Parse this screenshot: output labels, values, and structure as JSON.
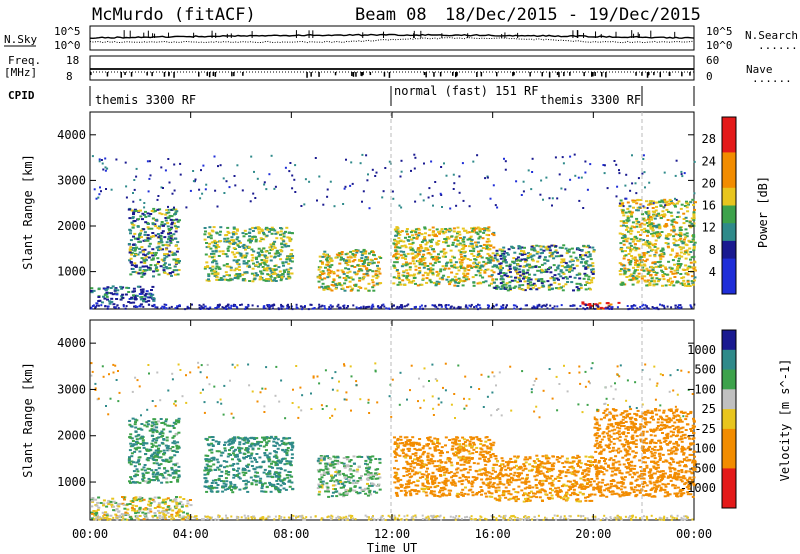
{
  "header": {
    "radar": "McMurdo (fitACF)",
    "beam": "Beam 08",
    "date_range": "18/Dec/2015 - 19/Dec/2015"
  },
  "panels": {
    "left_labels": {
      "nsky": "N.Sky",
      "nsky_ticks": [
        "10^5",
        "10^0"
      ],
      "freq": "Freq.",
      "freq_unit": "[MHz]",
      "freq_ticks": [
        "18",
        "8"
      ],
      "cpid": "CPID"
    },
    "right_labels": {
      "nsearch": "N.Search",
      "nsearch_ticks": [
        "10^5",
        "10^0"
      ],
      "nave": "Nave",
      "nave_ticks": [
        "60",
        "0"
      ],
      "dotted": "......"
    },
    "cpid_segments": [
      "themis 3300 RF",
      "normal (fast) 151 RF",
      "themis 3300 RF"
    ]
  },
  "colors": {
    "blue": "#1f2ed8",
    "teal": "#2f8a8a",
    "green": "#3da24b",
    "yellow": "#e8c51e",
    "orange": "#f28c00",
    "red": "#e41a1a",
    "gray": "#c0c0c0",
    "darkblue": "#1a1a90"
  },
  "chart_data": [
    {
      "type": "heatmap",
      "title": "Power [dB]",
      "xlabel": "",
      "ylabel": "Slant Range [km]",
      "xlim": [
        "00:00",
        "00:00"
      ],
      "ylim": [
        180,
        4500
      ],
      "y_ticks": [
        "4000",
        "3000",
        "2000",
        "1000"
      ],
      "colorbar": {
        "label": "Power [dB]",
        "ticks": [
          "28",
          "24",
          "20",
          "16",
          "12",
          "8",
          "4"
        ],
        "range": [
          0,
          30
        ]
      },
      "regions": [
        {
          "t_start": 0.0,
          "t_end": 2.5,
          "range_km": [
            300,
            700
          ],
          "value": 10
        },
        {
          "t_start": 1.5,
          "t_end": 3.5,
          "range_km": [
            900,
            2400
          ],
          "value": 14
        },
        {
          "t_start": 4.5,
          "t_end": 8.0,
          "range_km": [
            800,
            2000
          ],
          "value": 16
        },
        {
          "t_start": 9.0,
          "t_end": 11.5,
          "range_km": [
            600,
            1500
          ],
          "value": 18
        },
        {
          "t_start": 12.0,
          "t_end": 16.0,
          "range_km": [
            700,
            2000
          ],
          "value": 18
        },
        {
          "t_start": 16.0,
          "t_end": 20.0,
          "range_km": [
            600,
            1600
          ],
          "value": 14
        },
        {
          "t_start": 19.5,
          "t_end": 21.0,
          "range_km": [
            200,
            350
          ],
          "value": 28
        },
        {
          "t_start": 21.0,
          "t_end": 24.0,
          "range_km": [
            700,
            2600
          ],
          "value": 18
        }
      ]
    },
    {
      "type": "heatmap",
      "title": "Velocity [m s^-1]",
      "xlabel": "Time UT",
      "ylabel": "Slant Range [km]",
      "x_ticks": [
        "00:00",
        "04:00",
        "08:00",
        "12:00",
        "16:00",
        "20:00",
        "00:00"
      ],
      "ylim": [
        180,
        4500
      ],
      "y_ticks": [
        "4000",
        "3000",
        "2000",
        "1000"
      ],
      "colorbar": {
        "label": "Velocity [m s^-1]",
        "ticks": [
          "1000",
          "500",
          "100",
          "25",
          "-25",
          "-100",
          "-500",
          "-1000"
        ],
        "range": [
          -1000,
          1000
        ]
      },
      "regions": [
        {
          "t_start": 0.0,
          "t_end": 4.0,
          "range_km": [
            200,
            700
          ],
          "value": 0
        },
        {
          "t_start": 1.5,
          "t_end": 3.5,
          "range_km": [
            1000,
            2400
          ],
          "value": 200
        },
        {
          "t_start": 4.5,
          "t_end": 8.0,
          "range_km": [
            800,
            2000
          ],
          "value": 250
        },
        {
          "t_start": 9.0,
          "t_end": 11.5,
          "range_km": [
            700,
            1600
          ],
          "value": 100
        },
        {
          "t_start": 12.0,
          "t_end": 16.0,
          "range_km": [
            700,
            2000
          ],
          "value": -250
        },
        {
          "t_start": 16.0,
          "t_end": 20.0,
          "range_km": [
            600,
            1600
          ],
          "value": -200
        },
        {
          "t_start": 20.0,
          "t_end": 24.0,
          "range_km": [
            700,
            2600
          ],
          "value": -300
        }
      ]
    }
  ]
}
